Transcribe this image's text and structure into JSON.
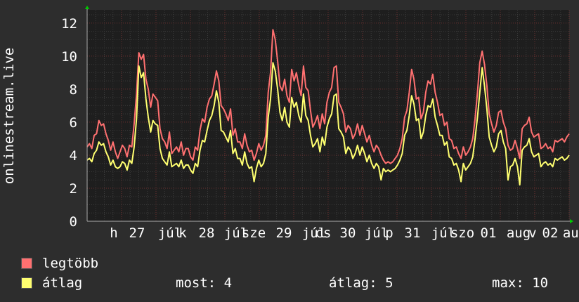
{
  "chart_data": {
    "type": "line",
    "ylabel": "onlinestream.live",
    "ylim": [
      0,
      12.8
    ],
    "yticks": [
      0,
      2,
      4,
      6,
      8,
      10,
      12
    ],
    "grid": true,
    "xlabels": [
      "h",
      "27",
      "júl",
      "k",
      "28",
      "júl",
      "sze",
      "29",
      "júl",
      "cs",
      "30",
      "júl",
      "p",
      "31",
      "júl",
      "szo",
      "01",
      "aug",
      "v",
      "02",
      "aug"
    ],
    "series": [
      {
        "name": "legtöbb",
        "color": "#ff7070",
        "values": [
          4.5,
          4.7,
          4.4,
          5.2,
          5.3,
          6.1,
          5.8,
          5.9,
          5.3,
          4.9,
          4.3,
          4.8,
          4.2,
          3.8,
          4.2,
          4.6,
          4.4,
          3.9,
          4.6,
          4.5,
          5.9,
          7.7,
          10.2,
          9.8,
          10.1,
          8.6,
          8.0,
          6.9,
          7.7,
          7.5,
          7.3,
          5.6,
          5.0,
          4.8,
          4.4,
          5.4,
          4.1,
          4.3,
          4.5,
          4.2,
          4.8,
          4.0,
          4.4,
          4.4,
          3.9,
          3.7,
          4.5,
          4.3,
          5.5,
          6.2,
          6.0,
          6.9,
          7.4,
          7.6,
          8.3,
          9.1,
          8.5,
          7.0,
          6.8,
          6.5,
          6.1,
          6.8,
          5.2,
          5.6,
          4.8,
          4.8,
          4.4,
          5.3,
          4.6,
          4.2,
          4.3,
          3.7,
          4.1,
          4.7,
          4.3,
          4.6,
          5.2,
          7.8,
          9.0,
          11.6,
          11.0,
          9.7,
          8.2,
          7.9,
          8.6,
          7.6,
          7.2,
          9.2,
          8.5,
          9.0,
          8.2,
          7.6,
          9.4,
          8.1,
          7.9,
          6.7,
          5.7,
          6.0,
          6.4,
          5.6,
          6.5,
          5.9,
          7.2,
          7.8,
          8.1,
          9.3,
          9.4,
          7.2,
          6.9,
          6.5,
          5.4,
          5.8,
          5.6,
          5.0,
          5.3,
          5.9,
          5.2,
          5.8,
          5.3,
          4.8,
          5.2,
          4.6,
          4.2,
          4.6,
          4.4,
          4.0,
          3.7,
          3.5,
          3.6,
          3.5,
          3.6,
          3.8,
          4.0,
          4.4,
          5.0,
          6.3,
          6.7,
          7.8,
          9.2,
          8.6,
          7.4,
          7.5,
          6.2,
          6.6,
          7.8,
          8.5,
          8.3,
          8.9,
          7.8,
          7.2,
          6.4,
          6.5,
          5.8,
          6.0,
          5.0,
          4.9,
          4.4,
          4.5,
          4.1,
          3.8,
          4.5,
          4.0,
          4.2,
          4.5,
          5.0,
          6.2,
          7.8,
          9.6,
          10.3,
          9.5,
          8.2,
          6.5,
          5.9,
          5.4,
          5.8,
          6.6,
          6.7,
          6.0,
          5.6,
          4.6,
          4.3,
          4.4,
          4.9,
          4.4,
          3.8,
          5.6,
          5.8,
          5.9,
          6.3,
          5.4,
          5.1,
          5.2,
          5.3,
          4.4,
          4.5,
          4.7,
          4.4,
          4.5,
          4.2,
          4.9,
          4.8,
          4.9,
          5.0,
          4.8,
          5.1,
          5.3
        ]
      },
      {
        "name": "átlag",
        "color": "#ffff70",
        "values": [
          3.7,
          3.8,
          3.6,
          4.1,
          4.3,
          4.8,
          4.6,
          4.7,
          4.2,
          3.9,
          3.4,
          3.7,
          3.3,
          3.2,
          3.3,
          3.6,
          3.5,
          3.1,
          3.7,
          3.5,
          4.5,
          6.2,
          9.4,
          8.7,
          9.0,
          7.4,
          6.3,
          5.4,
          6.1,
          5.9,
          5.8,
          4.4,
          3.8,
          3.6,
          3.4,
          4.2,
          3.3,
          3.4,
          3.5,
          3.3,
          3.7,
          3.2,
          3.4,
          3.4,
          3.1,
          2.9,
          3.5,
          3.3,
          4.3,
          4.9,
          4.8,
          5.5,
          6.1,
          6.4,
          7.0,
          7.9,
          7.2,
          5.5,
          5.4,
          5.1,
          4.8,
          5.5,
          4.1,
          4.4,
          3.8,
          3.8,
          3.4,
          4.2,
          3.5,
          3.2,
          3.3,
          2.4,
          3.2,
          3.7,
          3.3,
          3.5,
          4.1,
          6.3,
          7.4,
          9.6,
          9.1,
          8.0,
          6.6,
          6.1,
          6.9,
          6.0,
          5.7,
          7.5,
          6.9,
          7.2,
          6.4,
          6.0,
          7.7,
          6.4,
          6.1,
          5.2,
          4.5,
          4.7,
          5.0,
          4.2,
          5.1,
          4.6,
          5.7,
          6.2,
          6.5,
          7.6,
          7.7,
          5.6,
          5.4,
          5.1,
          4.1,
          4.5,
          4.3,
          3.8,
          4.1,
          4.6,
          4.0,
          4.5,
          4.1,
          3.6,
          4.0,
          3.5,
          3.2,
          3.5,
          3.3,
          2.5,
          3.2,
          3.0,
          3.1,
          3.0,
          3.1,
          3.2,
          3.4,
          3.7,
          4.1,
          5.2,
          5.5,
          6.4,
          7.6,
          7.1,
          6.1,
          6.2,
          5.0,
          5.4,
          6.4,
          7.0,
          6.9,
          7.4,
          6.3,
          5.8,
          5.2,
          5.2,
          4.6,
          4.8,
          3.9,
          3.8,
          3.4,
          3.5,
          3.1,
          2.4,
          3.5,
          3.1,
          3.3,
          3.5,
          3.9,
          5.0,
          6.3,
          7.8,
          9.3,
          8.2,
          6.8,
          5.1,
          4.6,
          4.2,
          4.5,
          5.3,
          5.5,
          4.8,
          4.4,
          2.5,
          3.3,
          3.4,
          3.8,
          3.3,
          2.2,
          4.3,
          4.5,
          4.6,
          5.0,
          4.2,
          3.9,
          4.0,
          4.1,
          3.3,
          3.5,
          3.6,
          3.4,
          3.5,
          3.3,
          3.8,
          3.7,
          3.8,
          3.9,
          3.7,
          3.8,
          4.0
        ]
      }
    ]
  },
  "legend": {
    "max_label": "legtöbb",
    "avg_label": "átlag",
    "now": "most: 4",
    "average": "átlag: 5",
    "maximum": "max: 10"
  }
}
